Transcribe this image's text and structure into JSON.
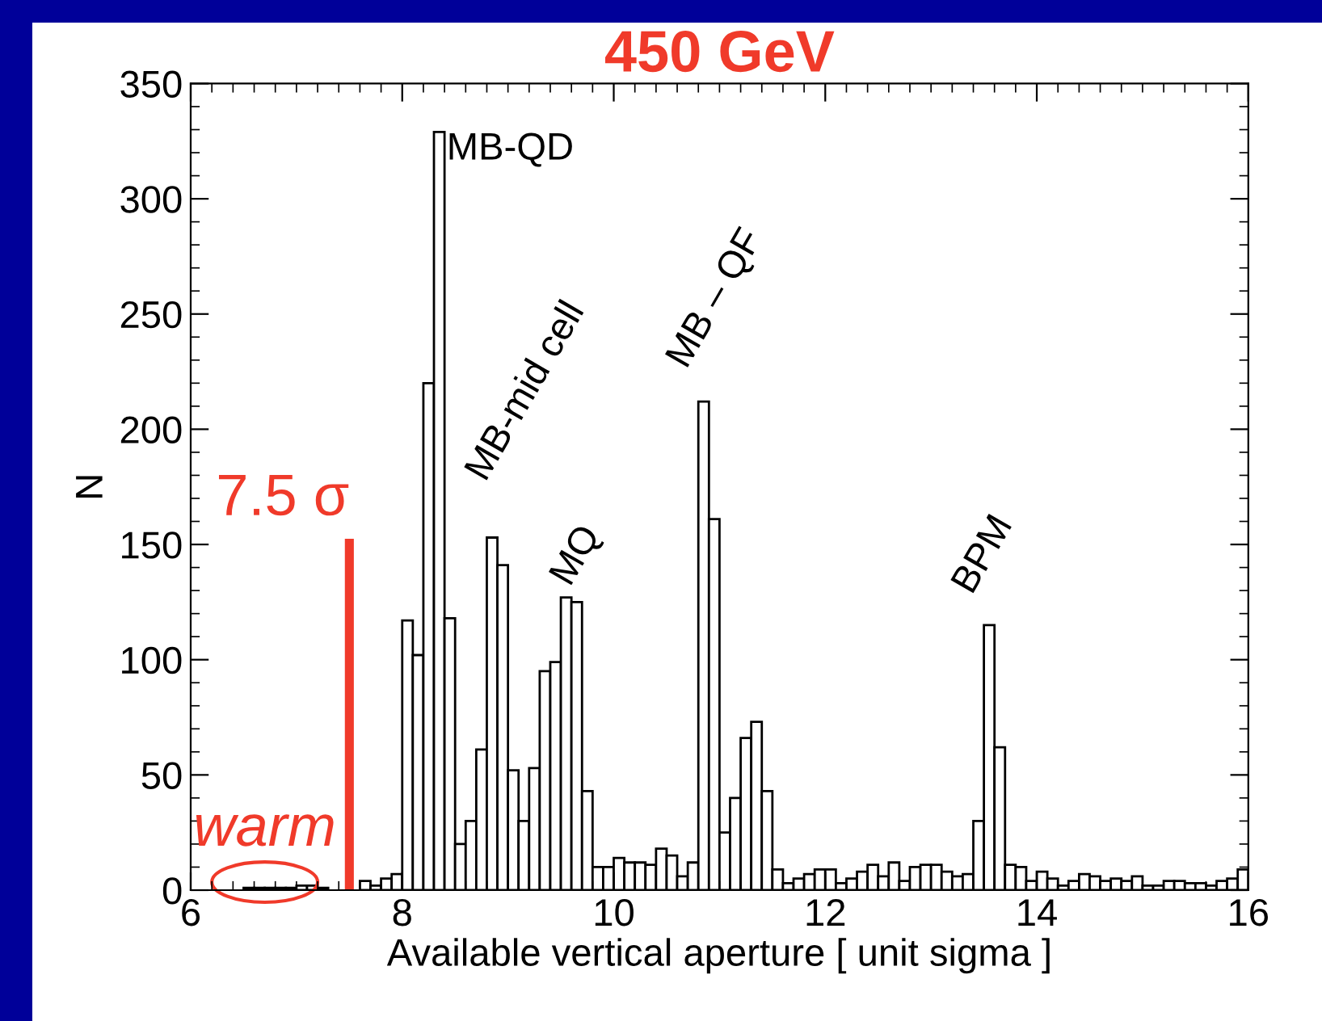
{
  "chart_data": {
    "type": "histogram",
    "title": "450 GeV",
    "xlabel": "Available vertical aperture [ unit sigma ]",
    "ylabel": "N",
    "bins": [
      6.0,
      6.1,
      6.2,
      6.3,
      6.4,
      6.5,
      6.6,
      6.7,
      6.8,
      6.9,
      7.0,
      7.1,
      7.2,
      7.3,
      7.4,
      7.5,
      7.6,
      7.7,
      7.8,
      7.9,
      8.0,
      8.1,
      8.2,
      8.3,
      8.4,
      8.5,
      8.6,
      8.7,
      8.8,
      8.9,
      9.0,
      9.1,
      9.2,
      9.3,
      9.4,
      9.5,
      9.6,
      9.7,
      9.8,
      9.9,
      10.0,
      10.1,
      10.2,
      10.3,
      10.4,
      10.5,
      10.6,
      10.7,
      10.8,
      10.9,
      11.0,
      11.1,
      11.2,
      11.3,
      11.4,
      11.5,
      11.6,
      11.7,
      11.8,
      11.9,
      12.0,
      12.1,
      12.2,
      12.3,
      12.4,
      12.5,
      12.6,
      12.7,
      12.8,
      12.9,
      13.0,
      13.1,
      13.2,
      13.3,
      13.4,
      13.5,
      13.6,
      13.7,
      13.8,
      13.9,
      14.0,
      14.1,
      14.2,
      14.3,
      14.4,
      14.5,
      14.6,
      14.7,
      14.8,
      14.9,
      15.0,
      15.1,
      15.2,
      15.3,
      15.4,
      15.5,
      15.6,
      15.7,
      15.8,
      15.9,
      16.0
    ],
    "values": [
      0,
      0,
      0,
      0,
      0,
      1,
      1,
      1,
      1,
      1,
      2,
      2,
      1,
      0,
      0,
      0,
      4,
      2,
      5,
      7,
      117,
      102,
      220,
      329,
      118,
      20,
      30,
      61,
      153,
      141,
      52,
      30,
      53,
      95,
      99,
      127,
      125,
      43,
      10,
      10,
      14,
      12,
      12,
      11,
      18,
      15,
      6,
      12,
      212,
      161,
      25,
      40,
      66,
      73,
      43,
      9,
      3,
      5,
      7,
      9,
      9,
      3,
      5,
      8,
      11,
      6,
      12,
      4,
      10,
      11,
      11,
      8,
      6,
      7,
      30,
      115,
      62,
      11,
      10,
      4,
      8,
      5,
      2,
      4,
      7,
      6,
      4,
      5,
      4,
      6,
      2,
      2,
      4,
      4,
      3,
      3,
      2,
      4,
      5,
      9
    ],
    "color": "#ffffff",
    "xlim": [
      6,
      16
    ],
    "xticks": [
      6,
      8,
      10,
      12,
      14,
      16
    ],
    "ylim": [
      0,
      350
    ],
    "yticks": [
      0,
      50,
      100,
      150,
      200,
      250,
      300,
      350
    ],
    "grid": false,
    "ref_lines": [
      {
        "axis": "x",
        "value": 7.5,
        "label": "7.5 σ",
        "color": "#f03a2a"
      }
    ],
    "annotations": [
      {
        "text": "MB-QD",
        "x": 8.35,
        "y": 329
      },
      "MB-mid cell",
      "MQ",
      "MB – QF",
      "BPM",
      "warm"
    ]
  }
}
